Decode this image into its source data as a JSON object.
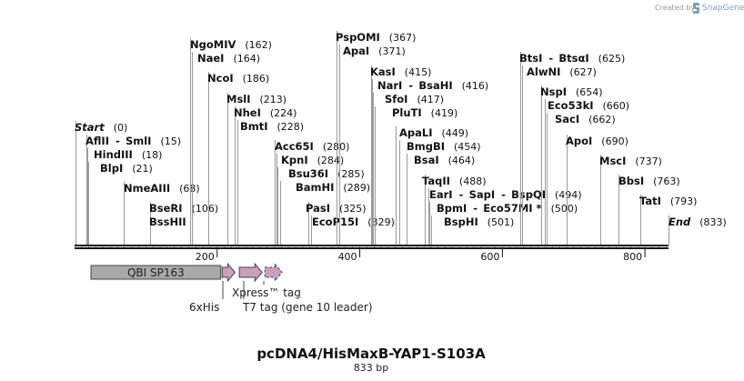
{
  "credit": {
    "created_by": "Created by",
    "brand": "SnapGene"
  },
  "map": {
    "title": "pcDNA4/HisMaxB-YAP1-S103A",
    "length_label": "833 bp",
    "total_bp": 833
  },
  "ruler": {
    "ticks": [
      {
        "bp": 200,
        "label": "200"
      },
      {
        "bp": 400,
        "label": "400"
      },
      {
        "bp": 600,
        "label": "600"
      },
      {
        "bp": 800,
        "label": "800"
      }
    ]
  },
  "sites": [
    {
      "id": "start",
      "bp": 0,
      "parts": [
        {
          "name": "Start",
          "italic": true
        }
      ],
      "pos": "(0)"
    },
    {
      "id": "aflii",
      "bp": 15,
      "parts": [
        {
          "name": "AflII"
        },
        {
          "name": "SmlI"
        }
      ],
      "pos": "(15)"
    },
    {
      "id": "hindiii",
      "bp": 18,
      "parts": [
        {
          "name": "HindIII"
        }
      ],
      "pos": "(18)"
    },
    {
      "id": "blpi",
      "bp": 21,
      "parts": [
        {
          "name": "BlpI"
        }
      ],
      "pos": "(21)"
    },
    {
      "id": "nmeaiii",
      "bp": 68,
      "parts": [
        {
          "name": "NmeAIII"
        }
      ],
      "pos": "(68)"
    },
    {
      "id": "bseri",
      "bp": 106,
      "parts": [
        {
          "name": "BseRI"
        }
      ],
      "pos": "(106)"
    },
    {
      "id": "bsshii",
      "bp": 106,
      "parts": [
        {
          "name": "BssHII"
        }
      ],
      "pos": ""
    },
    {
      "id": "ngomiv",
      "bp": 162,
      "parts": [
        {
          "name": "NgoMIV"
        }
      ],
      "pos": "(162)"
    },
    {
      "id": "naei",
      "bp": 164,
      "parts": [
        {
          "name": "NaeI"
        }
      ],
      "pos": "(164)"
    },
    {
      "id": "ncoi",
      "bp": 186,
      "parts": [
        {
          "name": "NcoI"
        }
      ],
      "pos": "(186)"
    },
    {
      "id": "msli",
      "bp": 213,
      "parts": [
        {
          "name": "MslI"
        }
      ],
      "pos": "(213)"
    },
    {
      "id": "nhei",
      "bp": 224,
      "parts": [
        {
          "name": "NheI"
        }
      ],
      "pos": "(224)"
    },
    {
      "id": "bmti",
      "bp": 228,
      "parts": [
        {
          "name": "BmtI"
        }
      ],
      "pos": "(228)"
    },
    {
      "id": "acc65i",
      "bp": 280,
      "parts": [
        {
          "name": "Acc65I"
        }
      ],
      "pos": "(280)"
    },
    {
      "id": "kpni",
      "bp": 284,
      "parts": [
        {
          "name": "KpnI"
        }
      ],
      "pos": "(284)"
    },
    {
      "id": "bsu36i",
      "bp": 285,
      "parts": [
        {
          "name": "Bsu36I"
        }
      ],
      "pos": "(285)"
    },
    {
      "id": "bamhi",
      "bp": 289,
      "parts": [
        {
          "name": "BamHI"
        }
      ],
      "pos": "(289)"
    },
    {
      "id": "pasi",
      "bp": 325,
      "parts": [
        {
          "name": "PasI"
        }
      ],
      "pos": "(325)"
    },
    {
      "id": "ecop15i",
      "bp": 329,
      "parts": [
        {
          "name": "EcoP15I"
        }
      ],
      "pos": "(329)"
    },
    {
      "id": "pspomi",
      "bp": 367,
      "parts": [
        {
          "name": "PspOMI"
        }
      ],
      "pos": "(367)"
    },
    {
      "id": "apai",
      "bp": 371,
      "parts": [
        {
          "name": "ApaI"
        }
      ],
      "pos": "(371)"
    },
    {
      "id": "kasi",
      "bp": 415,
      "parts": [
        {
          "name": "KasI"
        }
      ],
      "pos": "(415)"
    },
    {
      "id": "nari",
      "bp": 416,
      "parts": [
        {
          "name": "NarI"
        },
        {
          "name": "BsaHI"
        }
      ],
      "pos": "(416)"
    },
    {
      "id": "sfoi",
      "bp": 417,
      "parts": [
        {
          "name": "SfoI"
        }
      ],
      "pos": "(417)"
    },
    {
      "id": "pluti",
      "bp": 419,
      "parts": [
        {
          "name": "PluTI"
        }
      ],
      "pos": "(419)"
    },
    {
      "id": "apali",
      "bp": 449,
      "parts": [
        {
          "name": "ApaLI"
        }
      ],
      "pos": "(449)"
    },
    {
      "id": "bmgbi",
      "bp": 454,
      "parts": [
        {
          "name": "BmgBI"
        }
      ],
      "pos": "(454)"
    },
    {
      "id": "bsai",
      "bp": 464,
      "parts": [
        {
          "name": "BsaI"
        }
      ],
      "pos": "(464)"
    },
    {
      "id": "taqii",
      "bp": 488,
      "parts": [
        {
          "name": "TaqII"
        }
      ],
      "pos": "(488)"
    },
    {
      "id": "eari",
      "bp": 494,
      "parts": [
        {
          "name": "EarI"
        },
        {
          "name": "SapI"
        },
        {
          "name": "BspQI"
        }
      ],
      "pos": "(494)"
    },
    {
      "id": "bpmi",
      "bp": 500,
      "parts": [
        {
          "name": "BpmI"
        },
        {
          "name": "Eco57MI *"
        }
      ],
      "pos": "(500)"
    },
    {
      "id": "bsphi",
      "bp": 501,
      "parts": [
        {
          "name": "BspHI"
        }
      ],
      "pos": "(501)"
    },
    {
      "id": "btsi",
      "bp": 625,
      "parts": [
        {
          "name": "BtsI"
        },
        {
          "name": "BtsαI"
        }
      ],
      "pos": "(625)"
    },
    {
      "id": "alwni",
      "bp": 627,
      "parts": [
        {
          "name": "AlwNI"
        }
      ],
      "pos": "(627)"
    },
    {
      "id": "nspi",
      "bp": 654,
      "parts": [
        {
          "name": "NspI"
        }
      ],
      "pos": "(654)"
    },
    {
      "id": "eco53ki",
      "bp": 660,
      "parts": [
        {
          "name": "Eco53kI"
        }
      ],
      "pos": "(660)"
    },
    {
      "id": "saci",
      "bp": 662,
      "parts": [
        {
          "name": "SacI"
        }
      ],
      "pos": "(662)"
    },
    {
      "id": "apoi",
      "bp": 690,
      "parts": [
        {
          "name": "ApoI"
        }
      ],
      "pos": "(690)"
    },
    {
      "id": "msci",
      "bp": 737,
      "parts": [
        {
          "name": "MscI"
        }
      ],
      "pos": "(737)"
    },
    {
      "id": "bbsi",
      "bp": 763,
      "parts": [
        {
          "name": "BbsI"
        }
      ],
      "pos": "(763)"
    },
    {
      "id": "tati",
      "bp": 793,
      "parts": [
        {
          "name": "TatI"
        }
      ],
      "pos": "(793)"
    },
    {
      "id": "end",
      "bp": 833,
      "parts": [
        {
          "name": "End",
          "italic": true
        }
      ],
      "pos": "(833)"
    }
  ],
  "features": [
    {
      "id": "qbi",
      "name": "QBI SP163",
      "start_bp": 23,
      "end_bp": 205,
      "kind": "box",
      "color": "#a7a9ac"
    },
    {
      "id": "his",
      "name": "6xHis",
      "start_bp": 207,
      "end_bp": 225,
      "kind": "arrow",
      "color": "#c9a0bf"
    },
    {
      "id": "t7",
      "name": "T7 tag (gene 10 leader)",
      "start_bp": 231,
      "end_bp": 263,
      "kind": "arrow",
      "color": "#c9a0bf"
    },
    {
      "id": "xpress",
      "name": "Xpress™ tag",
      "start_bp": 267,
      "end_bp": 291,
      "kind": "arrow",
      "color": "#c9a0bf"
    }
  ],
  "colors": {
    "dna": "#111111",
    "feature_purple": "#c9a0bf",
    "feature_gray": "#a7a9ac",
    "brand": "#7f9fb8"
  }
}
